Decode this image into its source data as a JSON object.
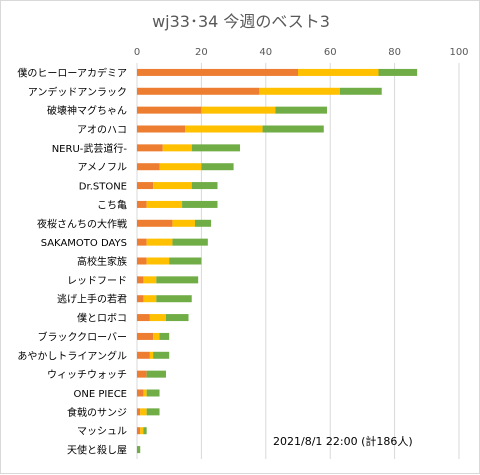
{
  "chart_data": {
    "type": "bar",
    "orientation": "horizontal",
    "stacked": true,
    "title": "wj33･34 今週のベスト3",
    "annotation": "2021/8/1  22:00   (計186人)",
    "xlim": [
      0,
      100
    ],
    "xticks": [
      0,
      20,
      40,
      60,
      80,
      100
    ],
    "grid": true,
    "legend": "none",
    "colors": [
      "#ED7D31",
      "#FFC000",
      "#70AD47"
    ],
    "categories": [
      "僕のヒーローアカデミア",
      "アンデッドアンラック",
      "破壊神マグちゃん",
      "アオのハコ",
      "NERU-武芸道行-",
      "アメノフル",
      "Dr.STONE",
      "こち亀",
      "夜桜さんちの大作戦",
      "SAKAMOTO DAYS",
      "高校生家族",
      "レッドフード",
      "逃げ上手の若君",
      "僕とロボコ",
      "ブラッククローバー",
      "あやかしトライアングル",
      "ウィッチウォッチ",
      "ONE PIECE",
      "食戟のサンジ",
      "マッシュル",
      "天使と殺し屋"
    ],
    "series": [
      {
        "values": [
          50,
          38,
          20,
          15,
          8,
          7,
          5,
          3,
          11,
          3,
          3,
          2,
          2,
          4,
          5,
          4,
          3,
          2,
          1,
          1,
          0
        ]
      },
      {
        "values": [
          25,
          25,
          23,
          24,
          9,
          13,
          12,
          11,
          7,
          8,
          7,
          4,
          4,
          5,
          2,
          1,
          0,
          1,
          2,
          1,
          0
        ]
      },
      {
        "values": [
          12,
          13,
          16,
          19,
          15,
          10,
          8,
          11,
          5,
          11,
          10,
          13,
          11,
          7,
          3,
          5,
          6,
          4,
          4,
          1,
          1
        ]
      }
    ]
  }
}
